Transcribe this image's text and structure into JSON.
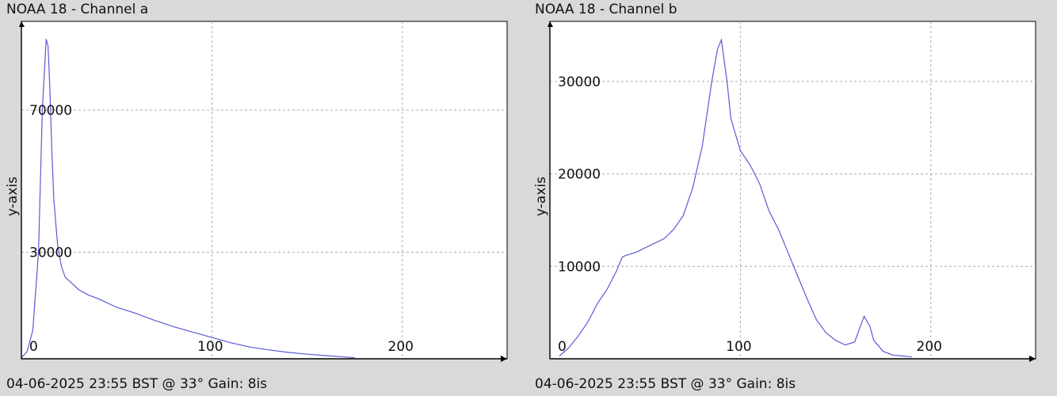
{
  "chart_data": [
    {
      "type": "line",
      "title": "NOAA 18 - Channel a",
      "footer": "04-06-2025 23:55 BST @ 33° Gain: 8is",
      "xlabel": "",
      "ylabel": "y-axis",
      "xlim": [
        0,
        255
      ],
      "ylim": [
        0,
        95000
      ],
      "x_ticks": [
        0,
        100,
        200
      ],
      "y_ticks": [
        30000,
        70000
      ],
      "grid": true,
      "series": [
        {
          "color": "#5a5ad6",
          "x": [
            0,
            3,
            6,
            9,
            11,
            13,
            14,
            15,
            16,
            17,
            19,
            21,
            23,
            25,
            30,
            35,
            40,
            50,
            60,
            70,
            80,
            90,
            100,
            110,
            120,
            130,
            140,
            150,
            160,
            170,
            175
          ],
          "y": [
            300,
            2000,
            8000,
            30000,
            70000,
            90000,
            88000,
            75000,
            58000,
            45000,
            32000,
            26000,
            23000,
            22000,
            19500,
            18000,
            17000,
            14500,
            12800,
            10800,
            9000,
            7500,
            6000,
            4500,
            3300,
            2500,
            1800,
            1300,
            900,
            500,
            300
          ]
        }
      ]
    },
    {
      "type": "line",
      "title": "NOAA 18 - Channel b",
      "footer": "04-06-2025 23:55 BST @ 33° Gain: 8is",
      "xlabel": "",
      "ylabel": "y-axis",
      "xlim": [
        0,
        255
      ],
      "ylim": [
        0,
        36500
      ],
      "x_ticks": [
        0,
        100,
        200
      ],
      "y_ticks": [
        10000,
        20000,
        30000
      ],
      "grid": true,
      "series": [
        {
          "color": "#5a5ad6",
          "x": [
            5,
            10,
            15,
            20,
            25,
            30,
            35,
            38,
            40,
            45,
            50,
            60,
            65,
            70,
            75,
            80,
            85,
            88,
            90,
            93,
            95,
            100,
            105,
            110,
            115,
            120,
            125,
            130,
            135,
            140,
            145,
            150,
            155,
            160,
            163,
            165,
            168,
            170,
            175,
            180,
            185,
            190
          ],
          "y": [
            300,
            1200,
            2500,
            4000,
            6000,
            7500,
            9500,
            11000,
            11200,
            11500,
            12000,
            13000,
            14000,
            15500,
            18500,
            23000,
            30000,
            33500,
            34500,
            30000,
            26000,
            22500,
            21000,
            19000,
            16000,
            14000,
            11500,
            9000,
            6500,
            4200,
            2800,
            2000,
            1500,
            1800,
            3500,
            4600,
            3500,
            2000,
            800,
            400,
            300,
            200
          ]
        }
      ]
    }
  ]
}
